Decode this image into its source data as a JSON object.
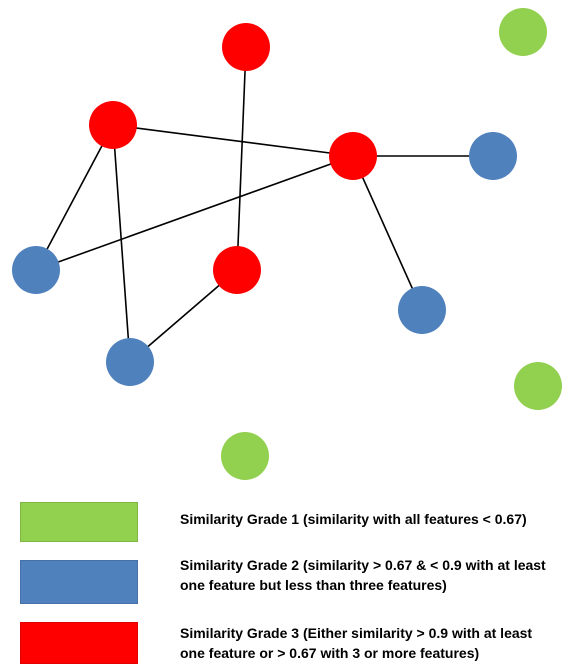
{
  "colors": {
    "grade1": "#92d050",
    "grade2": "#4f81bd",
    "grade3": "#ff0000",
    "edge": "#000000"
  },
  "graph": {
    "nodes": [
      {
        "id": "n-red-top",
        "grade": 3
      },
      {
        "id": "n-red-left",
        "grade": 3
      },
      {
        "id": "n-red-hub",
        "grade": 3
      },
      {
        "id": "n-red-mid",
        "grade": 3
      },
      {
        "id": "n-blue-left",
        "grade": 2
      },
      {
        "id": "n-blue-bottom",
        "grade": 2
      },
      {
        "id": "n-blue-right",
        "grade": 2
      },
      {
        "id": "n-blue-lowright",
        "grade": 2
      },
      {
        "id": "n-green-topright",
        "grade": 1
      },
      {
        "id": "n-green-right",
        "grade": 1
      },
      {
        "id": "n-green-bottom",
        "grade": 1
      }
    ],
    "edges": [
      [
        "n-red-left",
        "n-red-hub"
      ],
      [
        "n-red-left",
        "n-blue-left"
      ],
      [
        "n-red-left",
        "n-blue-bottom"
      ],
      [
        "n-blue-left",
        "n-red-hub"
      ],
      [
        "n-red-top",
        "n-red-mid"
      ],
      [
        "n-red-mid",
        "n-blue-bottom"
      ],
      [
        "n-red-hub",
        "n-blue-right"
      ],
      [
        "n-red-hub",
        "n-blue-lowright"
      ]
    ]
  },
  "legend": [
    {
      "grade": 1,
      "lines": [
        "Similarity Grade 1 (similarity with all features < 0.67)"
      ]
    },
    {
      "grade": 2,
      "lines": [
        "Similarity Grade 2 (similarity > 0.67 & < 0.9 with at least",
        "one feature but less than three features)"
      ]
    },
    {
      "grade": 3,
      "lines": [
        "Similarity Grade 3 (Either similarity > 0.9 with at least",
        "one feature or > 0.67 with 3 or more features)"
      ]
    }
  ]
}
